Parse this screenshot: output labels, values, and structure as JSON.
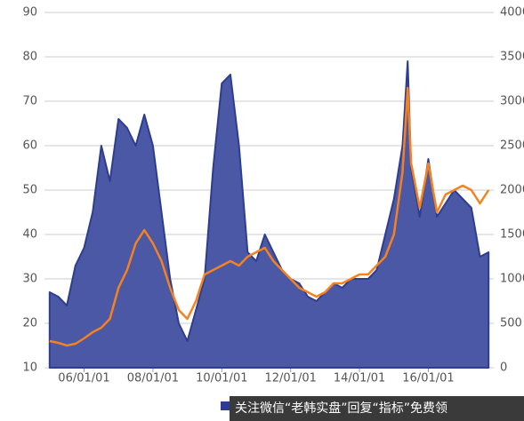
{
  "chart_data": {
    "type": "area-line",
    "x": [
      2005.0,
      2005.25,
      2005.5,
      2005.75,
      2006.0,
      2006.25,
      2006.5,
      2006.75,
      2007.0,
      2007.25,
      2007.5,
      2007.75,
      2008.0,
      2008.25,
      2008.5,
      2008.75,
      2009.0,
      2009.25,
      2009.5,
      2009.75,
      2010.0,
      2010.25,
      2010.5,
      2010.75,
      2011.0,
      2011.25,
      2011.5,
      2011.75,
      2012.0,
      2012.25,
      2012.5,
      2012.75,
      2013.0,
      2013.25,
      2013.5,
      2013.75,
      2014.0,
      2014.25,
      2014.5,
      2014.75,
      2015.0,
      2015.25,
      2015.4,
      2015.5,
      2015.75,
      2016.0,
      2016.25,
      2016.5,
      2016.75,
      2017.0,
      2017.25,
      2017.5,
      2017.75
    ],
    "series": [
      {
        "color": "#4a58a6",
        "values": [
          27,
          26,
          24,
          33,
          37,
          45,
          60,
          52,
          66,
          64,
          60,
          67,
          60,
          45,
          30,
          20,
          16,
          23,
          30,
          55,
          74,
          76,
          60,
          36,
          34,
          40,
          36,
          32,
          30,
          29,
          26,
          25,
          27,
          29,
          28,
          30,
          30,
          30,
          32,
          40,
          48,
          60,
          79,
          55,
          44,
          57,
          44,
          47,
          50,
          48,
          46,
          35,
          36
        ]
      },
      {
        "color": "#f5821f",
        "axis": "y2",
        "values": [
          300,
          280,
          250,
          270,
          330,
          400,
          450,
          550,
          900,
          1100,
          1400,
          1550,
          1400,
          1200,
          900,
          650,
          550,
          750,
          1050,
          1100,
          1150,
          1200,
          1150,
          1250,
          1300,
          1350,
          1200,
          1100,
          1000,
          900,
          850,
          800,
          850,
          950,
          950,
          1000,
          1050,
          1050,
          1150,
          1250,
          1500,
          2200,
          3150,
          2300,
          1800,
          2300,
          1750,
          1950,
          2000,
          2050,
          2000,
          1850,
          2000
        ]
      }
    ],
    "xlim": [
      2004.85,
      2017.9
    ],
    "xticks": [
      {
        "value": 2006,
        "label": "06/01/01"
      },
      {
        "value": 2008,
        "label": "08/01/01"
      },
      {
        "value": 2010,
        "label": "10/01/01"
      },
      {
        "value": 2012,
        "label": "12/01/01"
      },
      {
        "value": 2014,
        "label": "14/01/01"
      },
      {
        "value": 2016,
        "label": "16/01/01"
      }
    ],
    "ylim": [
      10,
      90
    ],
    "yticks": [
      10,
      20,
      30,
      40,
      50,
      60,
      70,
      80,
      90
    ],
    "y2lim": [
      0,
      4000
    ],
    "y2ticks": [
      0,
      500,
      1000,
      1500,
      2000,
      2500,
      3000,
      3500,
      4000
    ],
    "grid": true
  },
  "watermark": "关注微信“老韩实盘”回复“指标”免费领"
}
